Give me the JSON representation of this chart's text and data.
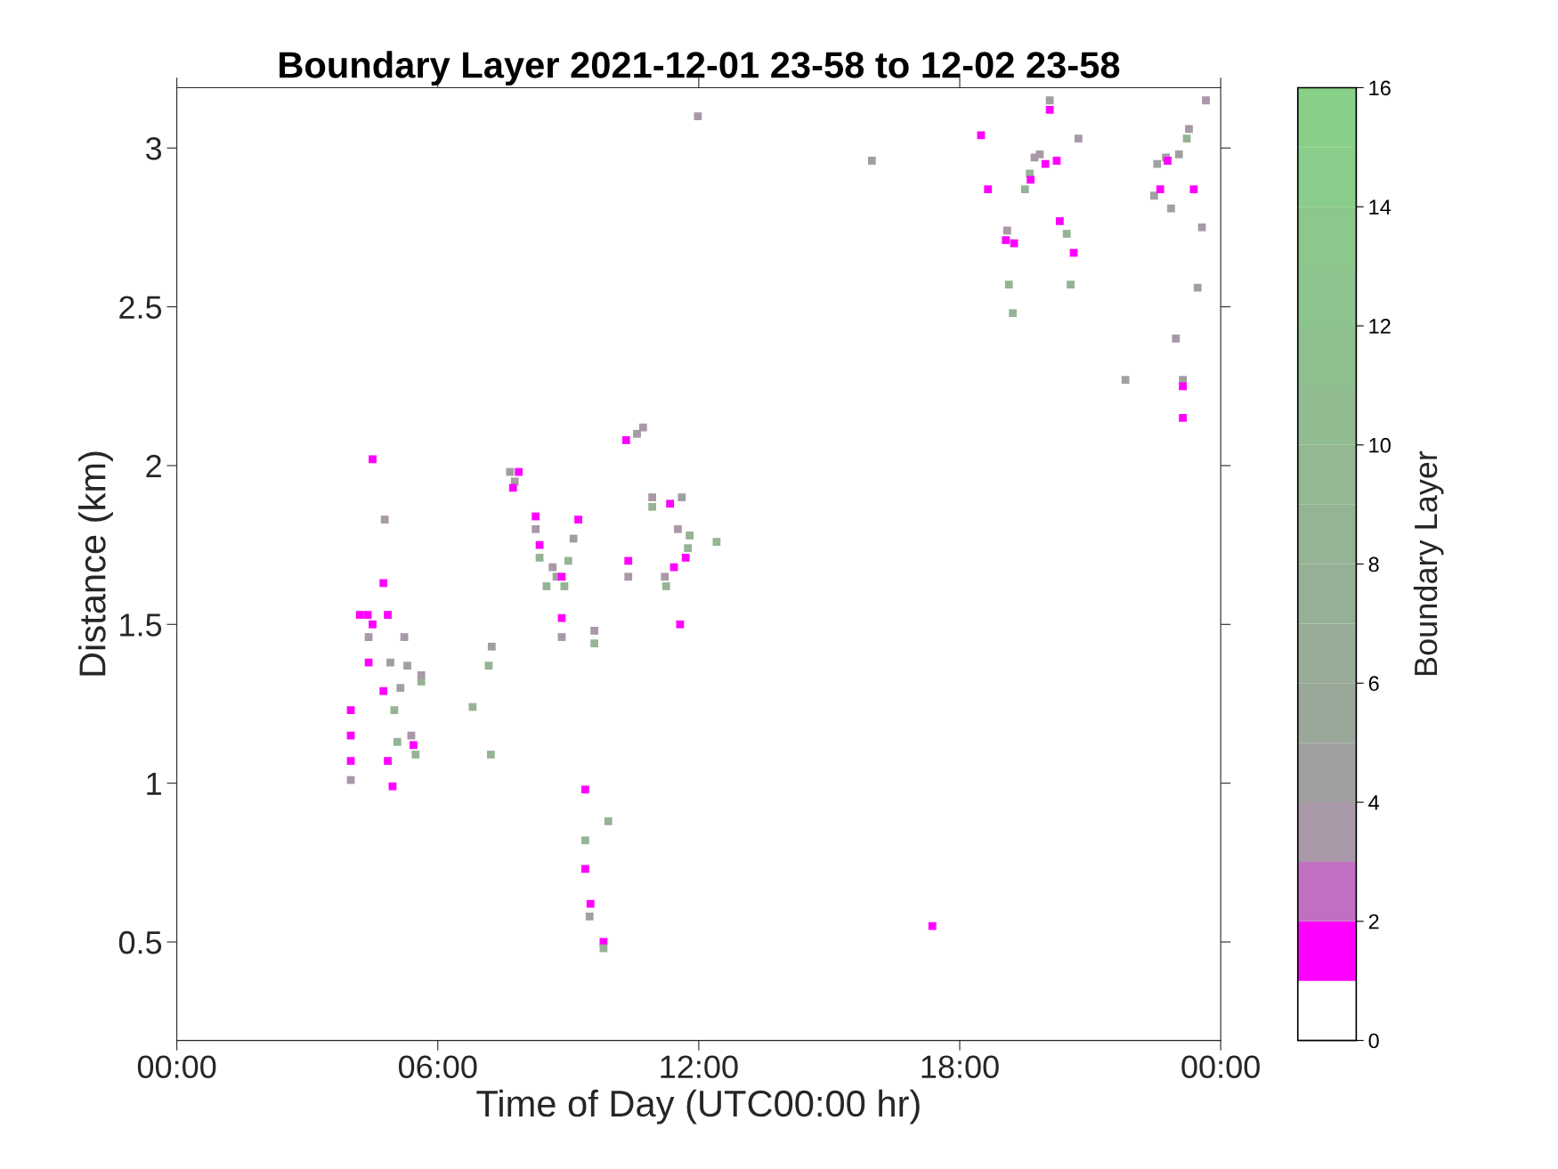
{
  "chart_data": {
    "type": "scatter",
    "title": "Boundary Layer 2021-12-01 23-58 to 12-02 23-58",
    "xlabel": "Time of Day (UTC00:00 hr)",
    "ylabel": "Distance (km)",
    "clabel": "Boundary Layer",
    "marker": "square",
    "grid": false,
    "x": [
      4.0,
      4.0,
      4.0,
      4.0,
      4.5,
      4.78,
      4.21,
      4.39,
      4.5,
      4.41,
      4.41,
      4.75,
      4.85,
      4.75,
      4.85,
      4.96,
      5.23,
      5.3,
      4.91,
      5.0,
      5.07,
      5.39,
      5.44,
      5.49,
      5.62,
      5.62,
      5.14,
      6.8,
      7.17,
      7.24,
      7.22,
      7.66,
      7.77,
      7.86,
      7.73,
      8.25,
      8.25,
      8.34,
      8.34,
      8.5,
      8.64,
      8.73,
      8.85,
      8.91,
      9.0,
      9.12,
      9.23,
      8.85,
      8.85,
      9.6,
      9.6,
      9.39,
      9.39,
      9.39,
      9.51,
      9.49,
      9.81,
      9.92,
      9.81,
      10.38,
      10.38,
      10.33,
      10.58,
      10.72,
      10.93,
      10.93,
      11.34,
      11.22,
      11.25,
      11.43,
      11.52,
      11.57,
      11.61,
      11.7,
      11.79,
      11.75,
      12.41,
      11.98,
      15.98,
      17.37,
      18.49,
      18.65,
      19.06,
      19.09,
      19.25,
      19.13,
      19.22,
      19.5,
      19.61,
      19.63,
      19.72,
      19.84,
      19.97,
      20.23,
      20.07,
      20.07,
      20.3,
      20.46,
      20.62,
      20.55,
      20.73,
      21.81,
      22.54,
      22.47,
      22.61,
      22.74,
      22.78,
      22.86,
      23.04,
      23.22,
      23.27,
      23.38,
      22.97,
      23.13,
      23.13,
      23.13,
      23.47,
      23.57,
      23.66
    ],
    "values": [
      1.23,
      1.15,
      1.07,
      1.01,
      2.02,
      1.83,
      1.53,
      1.53,
      1.5,
      1.46,
      1.38,
      1.63,
      1.53,
      1.29,
      1.07,
      0.99,
      1.46,
      1.37,
      1.38,
      1.23,
      1.13,
      1.15,
      1.12,
      1.09,
      1.32,
      1.34,
      1.3,
      1.24,
      1.37,
      1.43,
      1.09,
      1.98,
      1.95,
      1.98,
      1.93,
      1.84,
      1.8,
      1.75,
      1.71,
      1.62,
      1.68,
      1.65,
      1.65,
      1.62,
      1.7,
      1.77,
      1.83,
      1.52,
      1.46,
      1.48,
      1.44,
      0.98,
      0.82,
      0.73,
      0.62,
      0.58,
      0.5,
      0.88,
      0.48,
      1.7,
      1.65,
      2.08,
      2.1,
      2.12,
      1.9,
      1.87,
      1.88,
      1.65,
      1.62,
      1.68,
      1.8,
      1.5,
      1.9,
      1.71,
      1.78,
      1.74,
      1.76,
      3.1,
      2.96,
      0.55,
      3.04,
      2.87,
      2.71,
      2.74,
      2.7,
      2.57,
      2.48,
      2.87,
      2.92,
      2.9,
      2.97,
      2.98,
      2.95,
      2.96,
      3.15,
      3.12,
      2.77,
      2.73,
      2.67,
      2.57,
      3.03,
      2.27,
      2.95,
      2.85,
      2.87,
      2.97,
      2.96,
      2.81,
      2.98,
      3.03,
      3.06,
      2.87,
      2.4,
      2.27,
      2.25,
      2.15,
      2.56,
      2.75,
      3.15
    ],
    "cvalues": [
      1.5,
      1.5,
      1.5,
      3.5,
      1.5,
      3.5,
      1.5,
      1.5,
      1.5,
      3.5,
      1.5,
      1.5,
      1.5,
      1.5,
      1.5,
      1.5,
      3.5,
      4.5,
      4.5,
      8,
      8,
      3.5,
      1.5,
      8,
      8,
      3.5,
      4.5,
      8,
      8,
      4.5,
      8,
      4.5,
      4.5,
      1.5,
      1.5,
      1.5,
      3.5,
      1.5,
      8,
      8,
      3.5,
      4.5,
      1.5,
      8,
      8,
      4.5,
      1.5,
      1.5,
      3.5,
      3.5,
      8,
      1.5,
      8,
      1.5,
      1.5,
      4.5,
      1.5,
      8,
      8,
      1.5,
      3.5,
      1.5,
      3.5,
      3.5,
      3.5,
      8,
      1.5,
      3.5,
      8,
      1.5,
      3.5,
      1.5,
      4.5,
      1.5,
      8,
      8,
      8,
      3.5,
      4.5,
      1.5,
      1.5,
      1.5,
      1.5,
      3.5,
      1.5,
      8,
      8,
      8,
      8,
      1.5,
      3.5,
      3.5,
      1.5,
      1.5,
      4.5,
      1.5,
      1.5,
      8,
      1.5,
      8,
      3.5,
      4.5,
      4.5,
      4.5,
      1.5,
      4.5,
      1.5,
      4.5,
      4.5,
      8,
      3.5,
      1.5,
      3.5,
      4.5,
      1.5,
      1.5,
      4.5,
      3.5,
      3.5
    ],
    "xlim": [
      0,
      24
    ],
    "xticks": [
      {
        "value": 0,
        "label": "00:00"
      },
      {
        "value": 6,
        "label": "06:00"
      },
      {
        "value": 12,
        "label": "12:00"
      },
      {
        "value": 18,
        "label": "18:00"
      },
      {
        "value": 24,
        "label": "00:00"
      }
    ],
    "ylim": [
      0.19,
      3.19
    ],
    "yticks": [
      0.5,
      1,
      1.5,
      2,
      2.5,
      3
    ],
    "clim": [
      0,
      16
    ],
    "cticks": [
      0,
      2,
      4,
      6,
      8,
      10,
      12,
      14,
      16
    ]
  }
}
